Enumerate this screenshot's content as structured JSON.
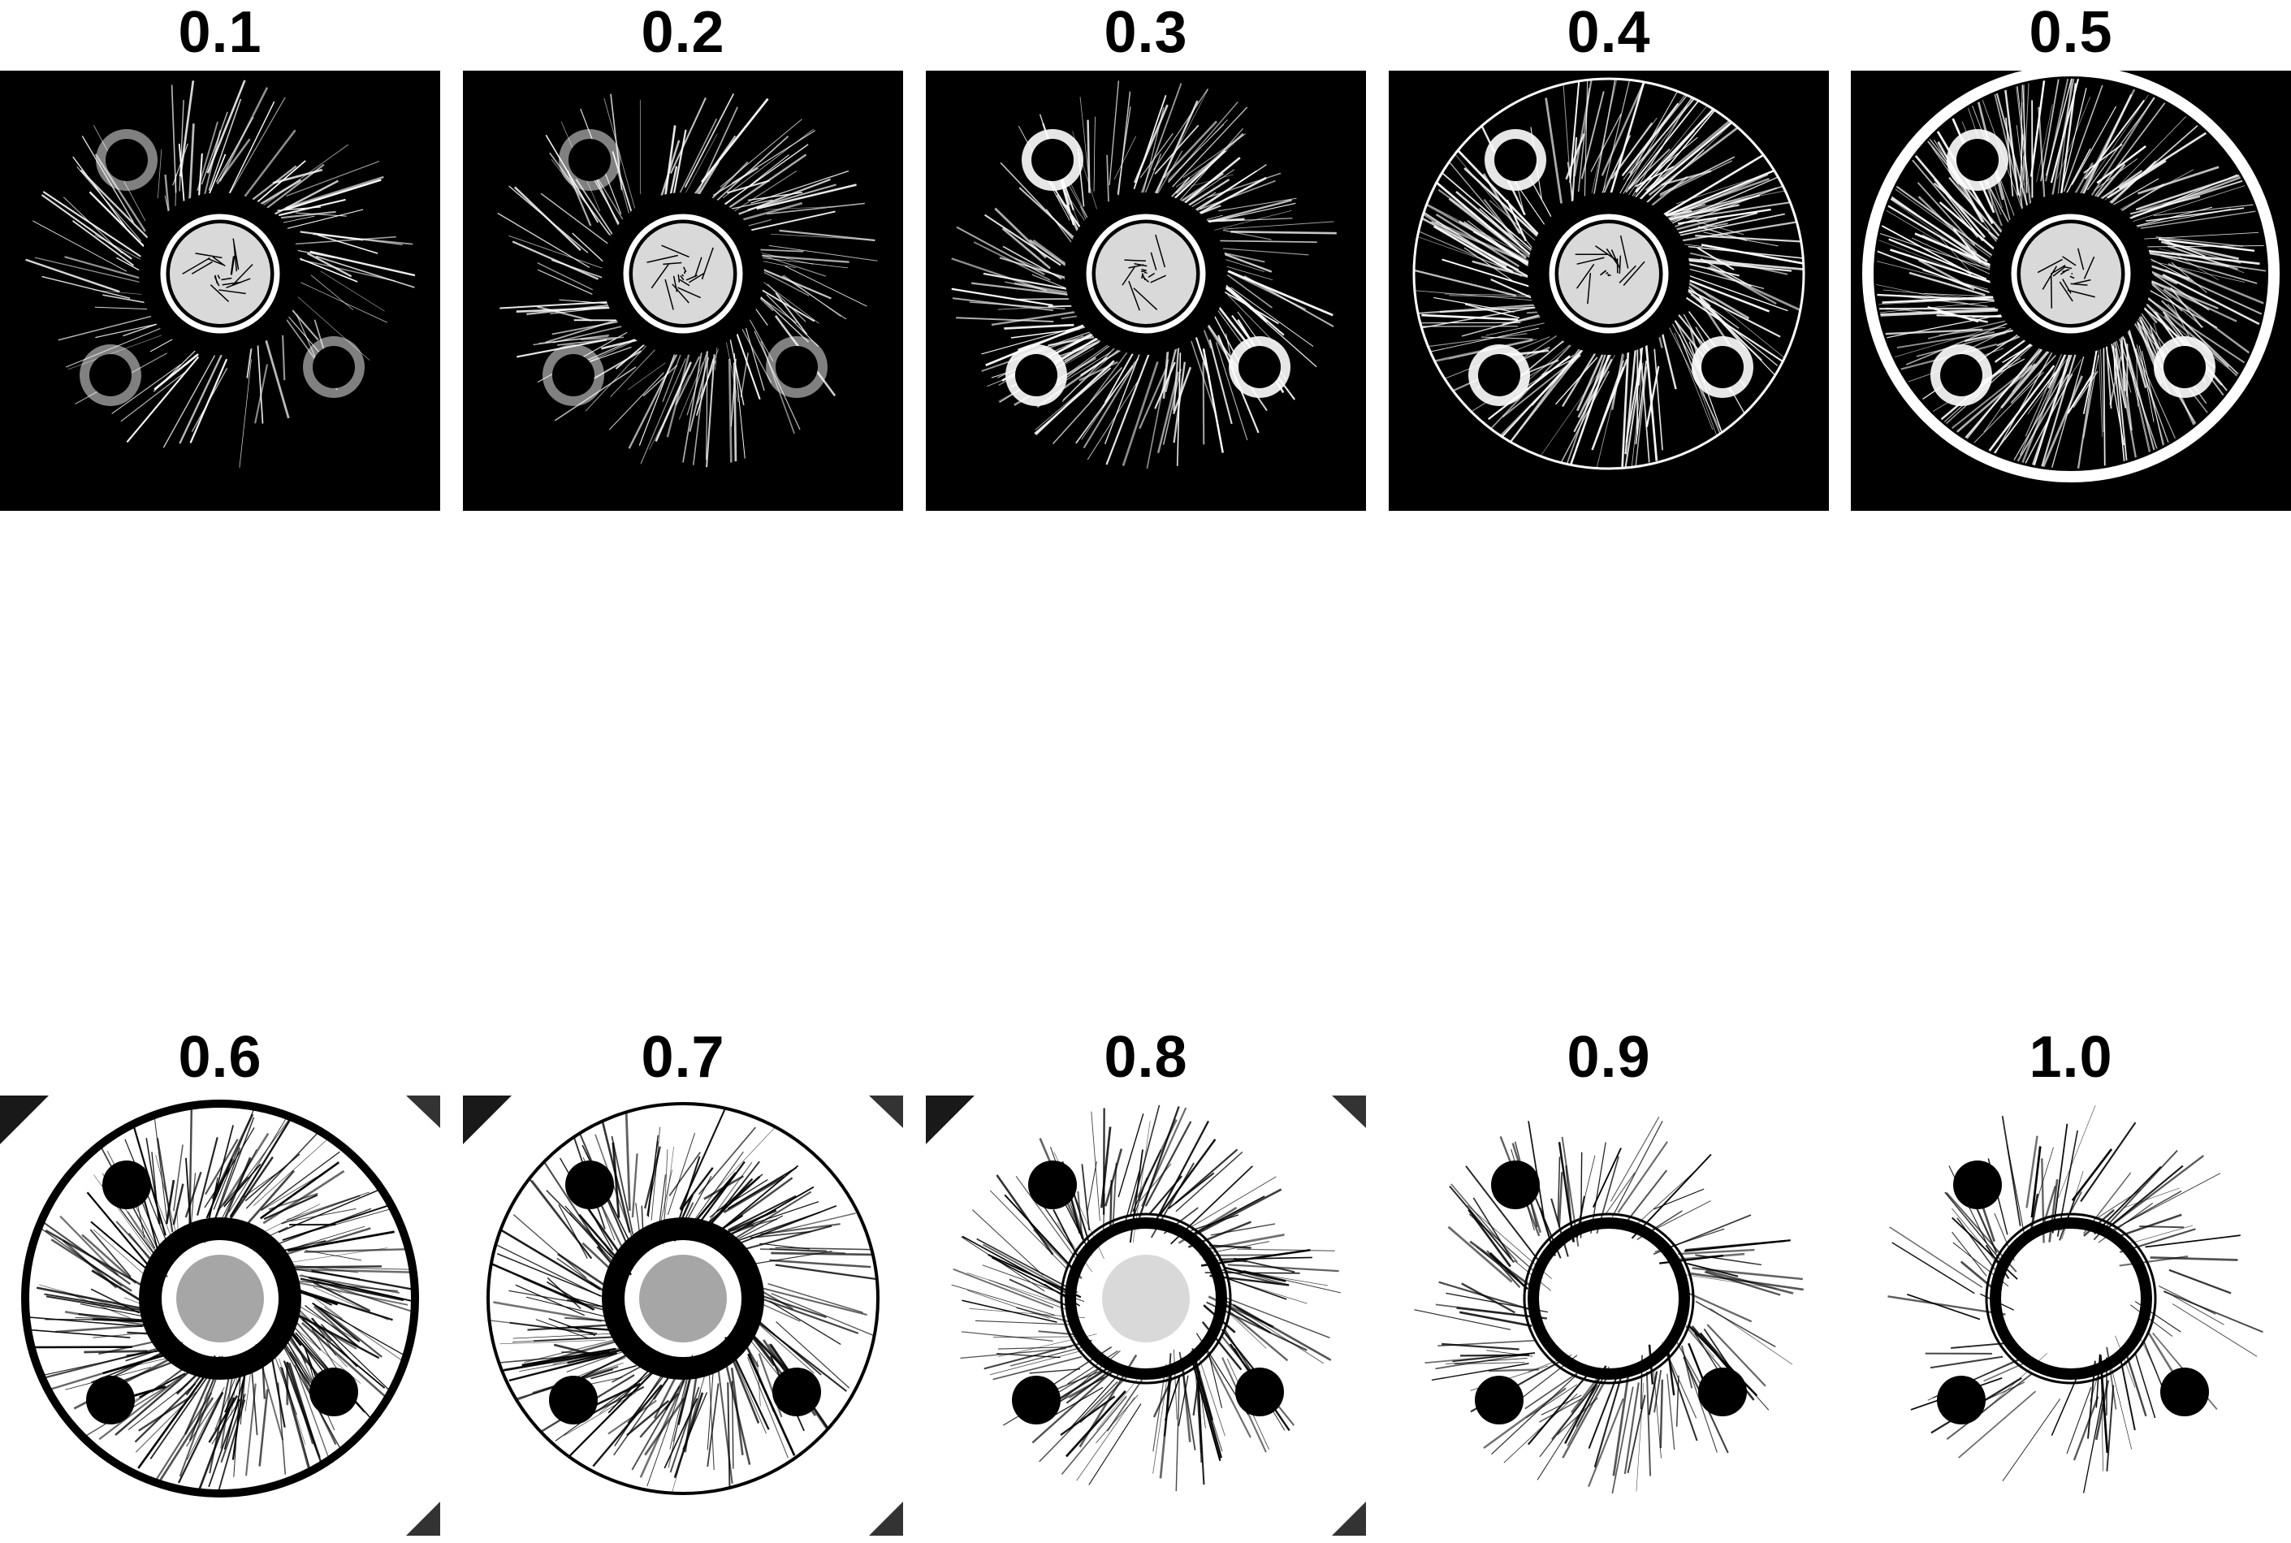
{
  "figure": {
    "row_top": [
      {
        "label": "0.1",
        "threshold": 0.1,
        "fg": "#ffffff",
        "bg": "#000000"
      },
      {
        "label": "0.2",
        "threshold": 0.2,
        "fg": "#ffffff",
        "bg": "#000000"
      },
      {
        "label": "0.3",
        "threshold": 0.3,
        "fg": "#ffffff",
        "bg": "#000000"
      },
      {
        "label": "0.4",
        "threshold": 0.4,
        "fg": "#ffffff",
        "bg": "#000000"
      },
      {
        "label": "0.5",
        "threshold": 0.5,
        "fg": "#ffffff",
        "bg": "#000000"
      }
    ],
    "row_bottom": [
      {
        "label": "0.6",
        "threshold": 0.6,
        "fg": "#000000",
        "bg": "#ffffff"
      },
      {
        "label": "0.7",
        "threshold": 0.7,
        "fg": "#000000",
        "bg": "#ffffff"
      },
      {
        "label": "0.8",
        "threshold": 0.8,
        "fg": "#000000",
        "bg": "#ffffff"
      },
      {
        "label": "0.9",
        "threshold": 0.9,
        "fg": "#000000",
        "bg": "#ffffff"
      },
      {
        "label": "1.0",
        "threshold": 1.0,
        "fg": "#000000",
        "bg": "#ffffff"
      }
    ]
  }
}
